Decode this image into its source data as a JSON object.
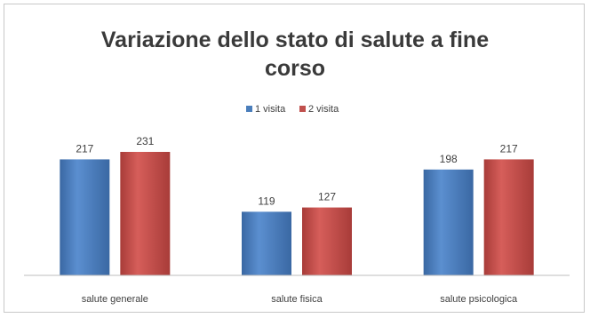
{
  "chart_data": {
    "type": "bar",
    "title_lines": [
      "Variazione dello stato di salute a fine",
      "corso"
    ],
    "categories": [
      "salute generale",
      "salute fisica",
      "salute psicologica"
    ],
    "series": [
      {
        "name": "1 visita",
        "values": [
          217,
          119,
          198
        ],
        "color": "#4a7ebb"
      },
      {
        "name": "2 visita",
        "values": [
          231,
          127,
          217
        ],
        "color": "#c0504d"
      }
    ],
    "ylim": [
      0,
      240
    ],
    "grid": false,
    "legend_position": "top-center",
    "show_data_labels": true
  }
}
